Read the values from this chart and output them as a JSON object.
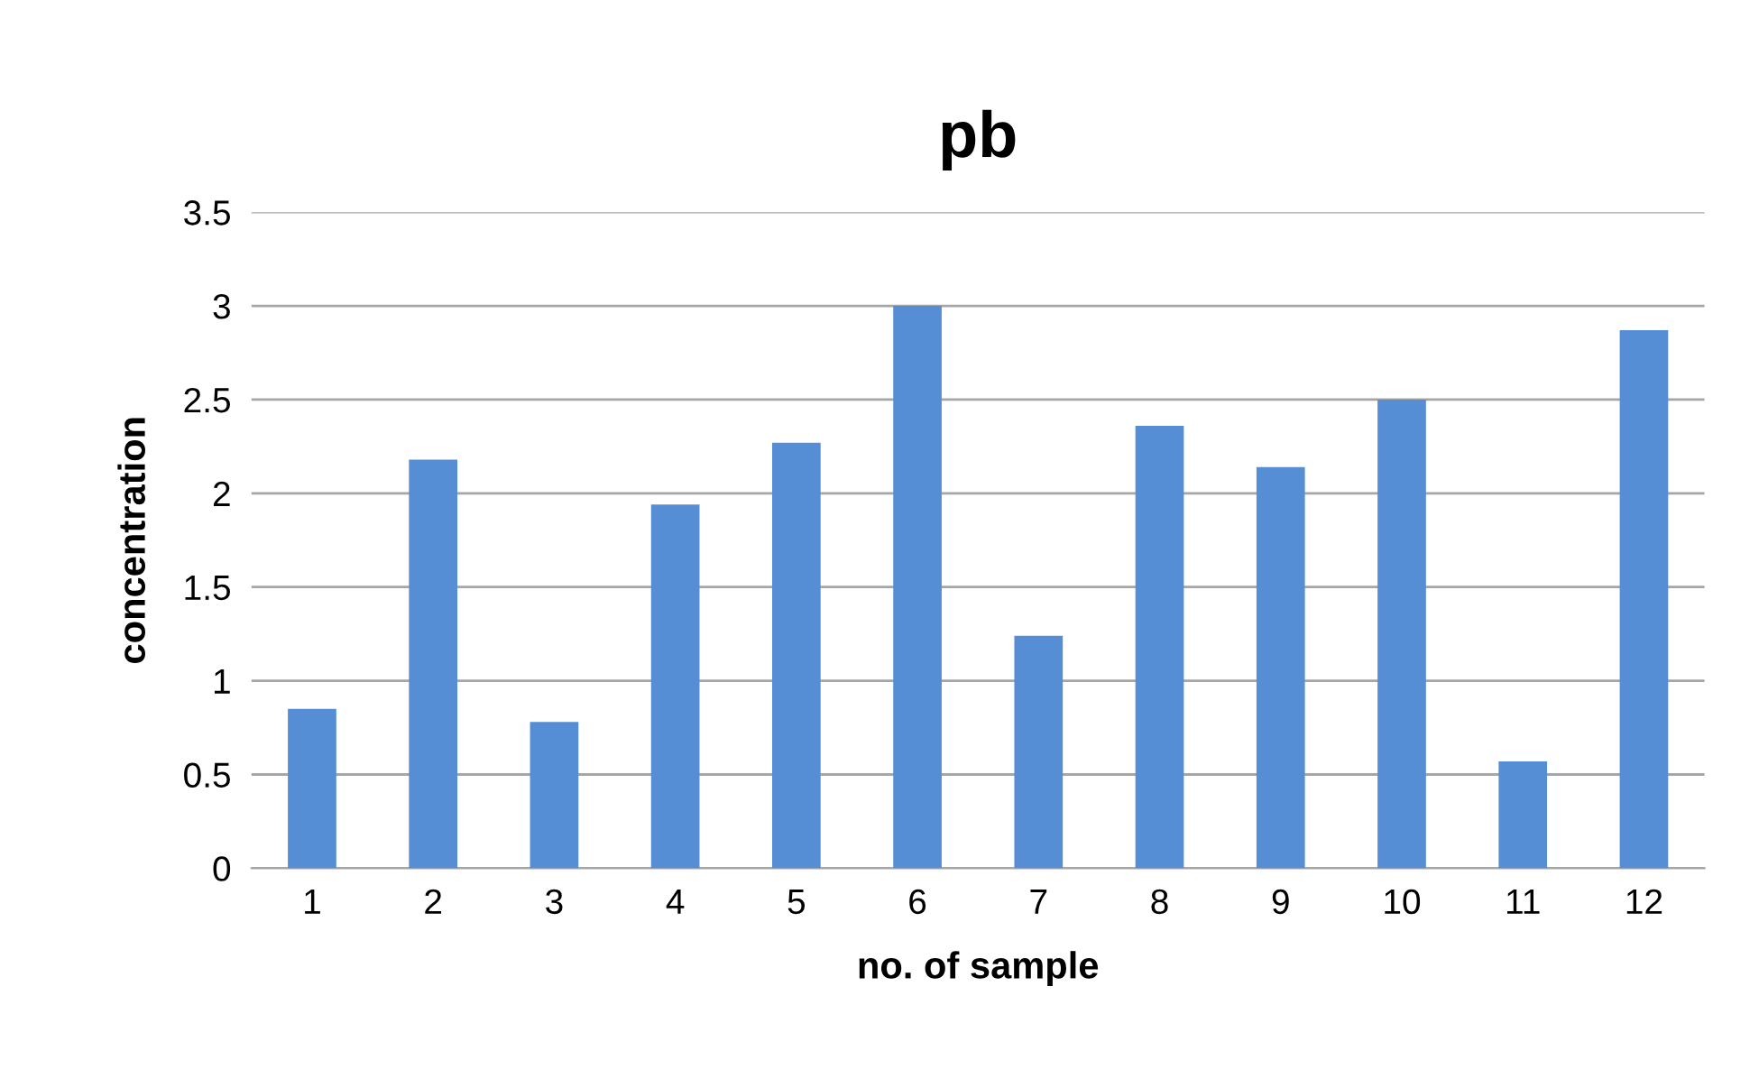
{
  "chart_data": {
    "type": "bar",
    "title": "pb",
    "xlabel": "no. of sample",
    "ylabel": "concentration",
    "categories": [
      "1",
      "2",
      "3",
      "4",
      "5",
      "6",
      "7",
      "8",
      "9",
      "10",
      "11",
      "12"
    ],
    "values": [
      0.85,
      2.18,
      0.78,
      1.94,
      2.27,
      3.0,
      1.24,
      2.36,
      2.14,
      2.5,
      0.57,
      2.87
    ],
    "color": "#558ed5",
    "ylim": [
      0,
      3.5
    ],
    "yticks": [
      0,
      0.5,
      1,
      1.5,
      2,
      2.5,
      3,
      3.5
    ],
    "grid": "y"
  }
}
